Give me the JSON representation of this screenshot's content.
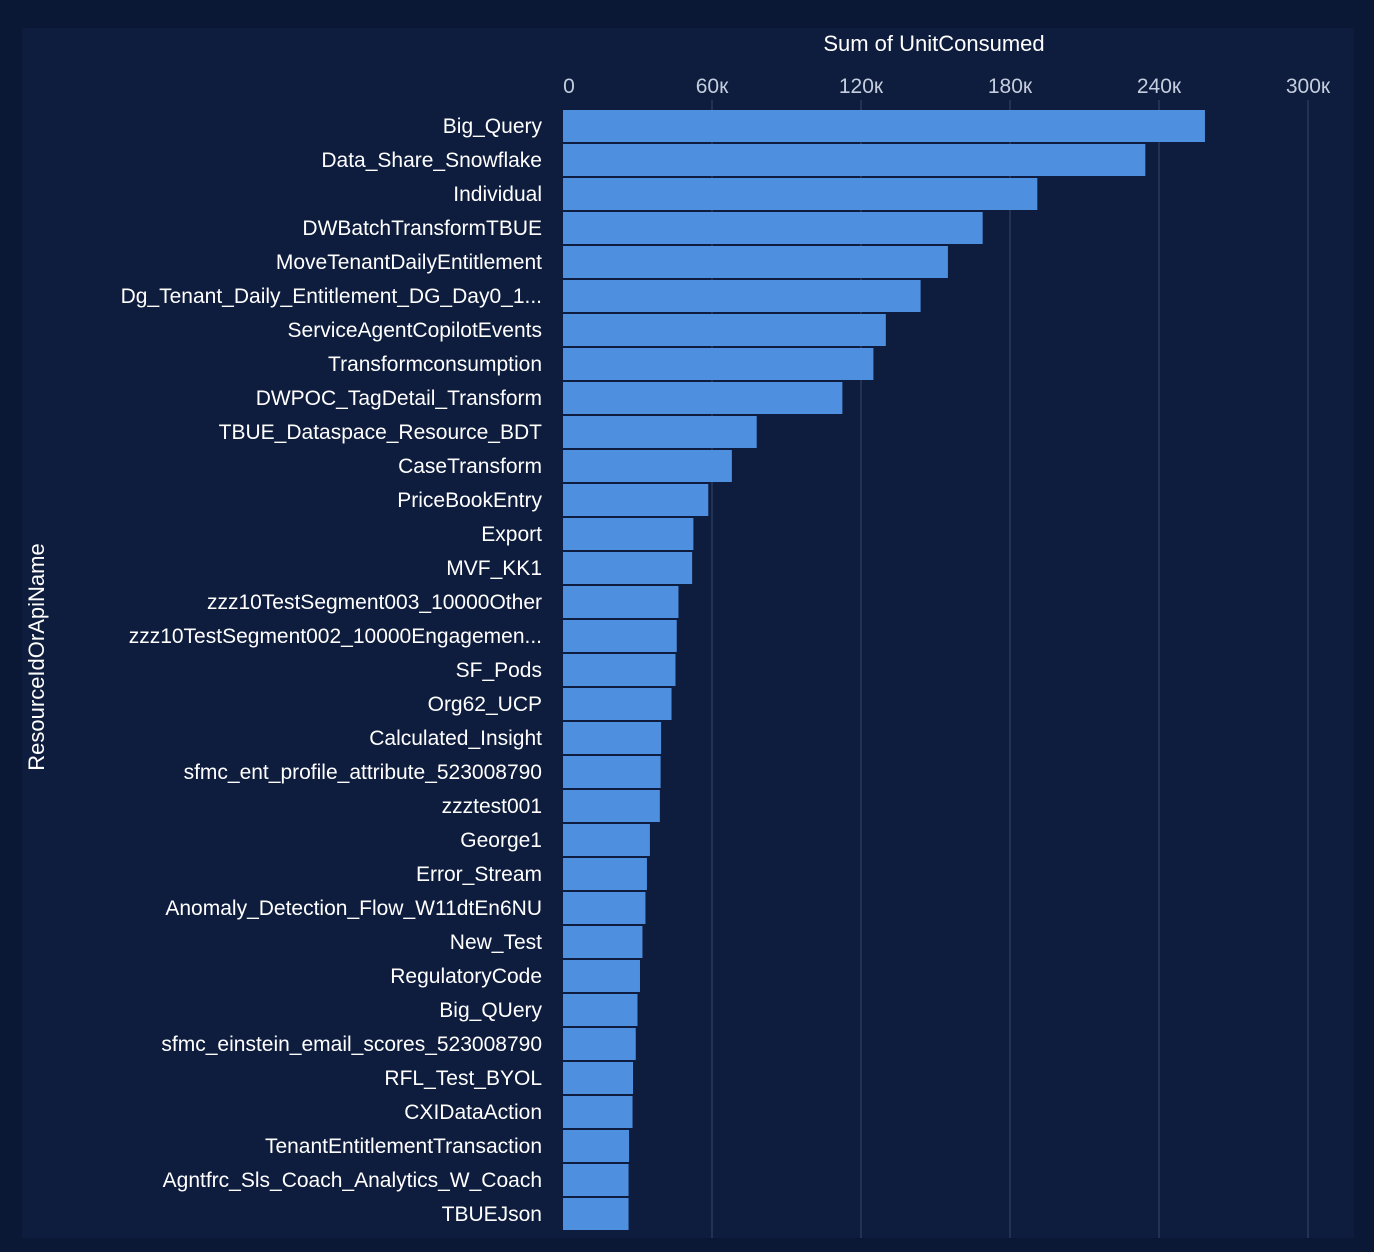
{
  "chart_data": {
    "type": "bar",
    "orientation": "horizontal",
    "xlabel": "Sum of UnitConsumed",
    "ylabel": "ResourceIdOrApiName",
    "xlim": [
      0,
      300000
    ],
    "xticks": [
      0,
      60000,
      120000,
      180000,
      240000,
      300000
    ],
    "xtick_labels": [
      "0",
      "60к",
      "120к",
      "180к",
      "240к",
      "300к"
    ],
    "grid": true,
    "colors": {
      "background": "#0a1836",
      "panel": "#0e1c3d",
      "bar": "#4f8fe0",
      "gridline": "#2a3a5e",
      "text": "#ffffff",
      "tick_text": "#c5cede"
    },
    "categories": [
      "Big_Query",
      "Data_Share_Snowflake",
      "Individual",
      "DWBatchTransformTBUE",
      "MoveTenantDailyEntitlement",
      "Dg_Tenant_Daily_Entitlement_DG_Day0_1...",
      "ServiceAgentCopilotEvents",
      "Transformconsumption",
      "DWPOC_TagDetail_Transform",
      "TBUE_Dataspace_Resource_BDT",
      "CaseTransform",
      "PriceBookEntry",
      "Export",
      "MVF_KK1",
      "zzz10TestSegment003_10000Other",
      "zzz10TestSegment002_10000Engagemen...",
      "SF_Pods",
      "Org62_UCP",
      "Calculated_Insight",
      "sfmc_ent_profile_attribute_523008790",
      "zzztest001",
      "George1",
      "Error_Stream",
      "Anomaly_Detection_Flow_W11dtEn6NU",
      "New_Test",
      "RegulatoryCode",
      "Big_QUery",
      "sfmc_einstein_email_scores_523008790",
      "RFL_Test_BYOL",
      "CXIDataAction",
      "TenantEntitlementTransaction",
      "Agntfrc_Sls_Coach_Analytics_W_Coach",
      "TBUEJson"
    ],
    "values": [
      258500,
      234500,
      191000,
      169000,
      155000,
      144000,
      130000,
      125000,
      112500,
      78000,
      68000,
      58500,
      52500,
      52000,
      46500,
      45800,
      45300,
      43700,
      39500,
      39300,
      39000,
      35000,
      33800,
      33200,
      32000,
      31000,
      30000,
      29300,
      28200,
      28000,
      26600,
      26400,
      26400
    ]
  }
}
